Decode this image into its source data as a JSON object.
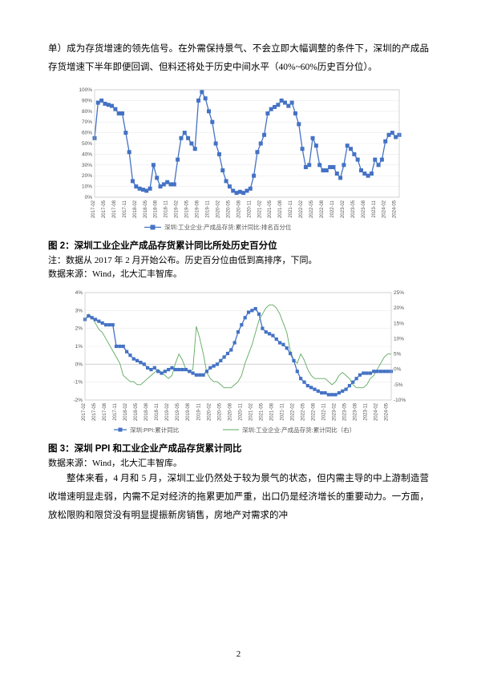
{
  "para1": "单）成为存货增速的领先信号。在外需保持景气、不会立即大幅调整的条件下，深圳的产成品存货增速下半年即便回调、但料还将处于历史中间水平（40%~60%历史百分位）。",
  "para2": "整体来看，4 月和 5 月，深圳工业仍然处于较为景气的状态，但内需主导的中上游制造营收增速明显走弱，内需不足对经济的拖累更加严重，出口仍是经济增长的重要动力。一方面，放松限购和限贷没有明显提振新房销售，房地产对需求的冲",
  "fig2": {
    "title": "图 2：深圳工业企业产成品存货累计同比所处历史百分位",
    "note": "注：数据从 2017 年 2 月开始公布。历史百分位由低到高排序，下同。",
    "src": "数据来源：Wind，北大汇丰智库。",
    "legend": "深圳:工业企业:产成品存货:累计同比:排名百分位"
  },
  "fig3": {
    "title": "图 3：深圳 PPI 和工业企业产成品存货累计同比",
    "src": "数据来源：Wind，北大汇丰智库。",
    "legendA": "深圳:PPI:累计同比",
    "legendB": "深圳:工业企业:产成品存货:累计同比（右）"
  },
  "pageNum": "2",
  "chart1": {
    "type": "line",
    "ylim": [
      0,
      100
    ],
    "ytick_step": 10,
    "x_labels": [
      "2017-02",
      "2017-05",
      "2017-08",
      "2017-11",
      "2018-02",
      "2018-05",
      "2018-08",
      "2018-11",
      "2019-02",
      "2019-05",
      "2019-08",
      "2019-11",
      "2020-02",
      "2020-05",
      "2020-08",
      "2020-11",
      "2021-02",
      "2021-05",
      "2021-08",
      "2021-11",
      "2022-02",
      "2022-05",
      "2022-08",
      "2022-11",
      "2023-02",
      "2023-05",
      "2023-08",
      "2023-11",
      "2024-02",
      "2024-05"
    ],
    "x_step": 3,
    "values": [
      55,
      88,
      90,
      87,
      86,
      85,
      82,
      78,
      78,
      60,
      42,
      15,
      10,
      8,
      7,
      6,
      8,
      30,
      18,
      10,
      12,
      14,
      12,
      12,
      35,
      55,
      60,
      55,
      50,
      45,
      90,
      98,
      92,
      80,
      70,
      50,
      40,
      25,
      15,
      10,
      6,
      4,
      5,
      4,
      6,
      8,
      20,
      42,
      50,
      58,
      78,
      82,
      84,
      86,
      90,
      88,
      85,
      88,
      78,
      68,
      45,
      28,
      30,
      55,
      48,
      30,
      25,
      25,
      28,
      28,
      22,
      18,
      30,
      48,
      45,
      40,
      35,
      25,
      22,
      20,
      22,
      35,
      30,
      35,
      52,
      58,
      60,
      56,
      58
    ],
    "colors": {
      "series": "#4472c4",
      "grid": "#eaeaea",
      "axis": "#bbb",
      "bg": "#ffffff"
    },
    "marker": "square",
    "marker_size": 2
  },
  "chart2": {
    "type": "dual-axis-line",
    "ylim_left": [
      -2,
      4
    ],
    "ytick_left": 1,
    "ylim_right": [
      -10,
      25
    ],
    "ytick_right": 5,
    "x_labels": [
      "2017-02",
      "2017-05",
      "2017-08",
      "2017-11",
      "2018-02",
      "2018-05",
      "2018-08",
      "2018-11",
      "2019-02",
      "2019-05",
      "2019-08",
      "2019-11",
      "2020-02",
      "2020-05",
      "2020-08",
      "2020-11",
      "2021-02",
      "2021-05",
      "2021-08",
      "2021-11",
      "2022-02",
      "2022-05",
      "2022-08",
      "2022-11",
      "2023-02",
      "2023-05",
      "2023-08",
      "2023-11",
      "2024-02",
      "2024-05"
    ],
    "x_step": 3,
    "ppi": [
      2.5,
      2.7,
      2.6,
      2.5,
      2.4,
      2.3,
      2.2,
      2.2,
      2.2,
      1.0,
      1.0,
      1.0,
      0.7,
      0.5,
      0.3,
      0.2,
      0.1,
      0.0,
      -0.2,
      -0.3,
      -0.2,
      -0.4,
      -0.5,
      -0.4,
      -0.3,
      -0.2,
      -0.3,
      -0.3,
      -0.3,
      -0.3,
      -0.4,
      -0.5,
      -0.6,
      -0.6,
      -0.6,
      -0.4,
      -0.2,
      -0.1,
      0.0,
      0.2,
      0.4,
      0.6,
      0.8,
      1.2,
      1.8,
      2.2,
      2.6,
      2.9,
      3.0,
      3.1,
      2.8,
      2.0,
      1.8,
      1.7,
      1.6,
      1.4,
      1.2,
      1.1,
      0.9,
      0.6,
      0.2,
      -0.4,
      -0.8,
      -1.0,
      -1.2,
      -1.3,
      -1.4,
      -1.5,
      -1.6,
      -1.6,
      -1.7,
      -1.7,
      -1.7,
      -1.6,
      -1.5,
      -1.4,
      -1.2,
      -1.0,
      -0.8,
      -0.6,
      -0.5,
      -0.5,
      -0.5,
      -0.4,
      -0.4,
      -0.4,
      -0.4,
      -0.4,
      -0.4
    ],
    "inv": [
      16,
      18,
      17,
      15,
      13,
      12,
      10,
      8,
      6,
      4,
      2,
      -2,
      -3,
      -4,
      -4,
      -5,
      -5,
      -4,
      -3,
      -2,
      -1,
      0,
      -1,
      -2,
      -3,
      -2,
      2,
      5,
      3,
      0,
      -1,
      0,
      14,
      10,
      5,
      -1,
      -3,
      -4,
      -4,
      -5,
      -6,
      -6,
      -6,
      -5,
      -4,
      -2,
      2,
      5,
      8,
      12,
      16,
      18,
      20,
      21,
      21,
      20,
      18,
      15,
      12,
      6,
      3,
      2,
      5,
      3,
      0,
      -2,
      -3,
      -3,
      -3,
      -3,
      -4,
      -5,
      -4,
      -2,
      -1,
      -2,
      -3,
      -5,
      -6,
      -6,
      -6,
      -5,
      -3,
      -2,
      0,
      2,
      4,
      5,
      5
    ],
    "colors": {
      "ppi": "#4472c4",
      "inv": "#5faa5f",
      "grid": "#eaeaea",
      "axis": "#bbb",
      "bg": "#ffffff"
    },
    "marker_ppi": "square",
    "marker_size": 1.6
  }
}
